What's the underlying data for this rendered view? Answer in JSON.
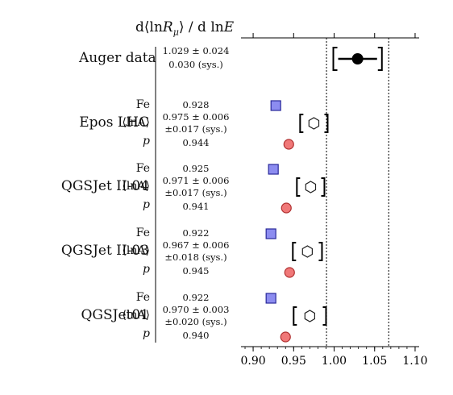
{
  "header": "d⟨lnR_μ⟩/d lnE",
  "chart_data": {
    "type": "scatter",
    "xlim": [
      0.885,
      1.105
    ],
    "xticks": [
      0.9,
      0.95,
      1.0,
      1.05,
      1.1
    ],
    "xtick_labels": [
      "0.90",
      "0.95",
      "1.00",
      "1.05",
      "1.10"
    ],
    "auger": {
      "label": "Auger data",
      "value": 1.029,
      "stat": 0.024,
      "sys": 0.03,
      "text_main": "1.029 ± 0.024",
      "text_sys": "0.030 (sys.)",
      "marker_color": "#000000"
    },
    "models": [
      {
        "name": "Epos LHC",
        "fe": {
          "label": "Fe",
          "value": 0.928,
          "text": "0.928"
        },
        "lnA": {
          "label": "⟨lnA⟩",
          "value": 0.975,
          "stat": 0.006,
          "sys": 0.017,
          "text_main": "0.975 ± 0.006",
          "text_sys": "±0.017 (sys.)"
        },
        "p": {
          "label": "p",
          "value": 0.944,
          "text": "0.944"
        }
      },
      {
        "name": "QGSJet II-04",
        "fe": {
          "label": "Fe",
          "value": 0.925,
          "text": "0.925"
        },
        "lnA": {
          "label": "⟨lnA⟩",
          "value": 0.971,
          "stat": 0.006,
          "sys": 0.017,
          "text_main": "0.971 ± 0.006",
          "text_sys": "±0.017 (sys.)"
        },
        "p": {
          "label": "p",
          "value": 0.941,
          "text": "0.941"
        }
      },
      {
        "name": "QGSJet II-03",
        "fe": {
          "label": "Fe",
          "value": 0.922,
          "text": "0.922"
        },
        "lnA": {
          "label": "⟨lnA⟩",
          "value": 0.967,
          "stat": 0.006,
          "sys": 0.018,
          "text_main": "0.967 ± 0.006",
          "text_sys": "±0.018 (sys.)"
        },
        "p": {
          "label": "p",
          "value": 0.945,
          "text": "0.945"
        }
      },
      {
        "name": "QGSJet01",
        "fe": {
          "label": "Fe",
          "value": 0.922,
          "text": "0.922"
        },
        "lnA": {
          "label": "⟨lnA⟩",
          "value": 0.97,
          "stat": 0.003,
          "sys": 0.02,
          "text_main": "0.970 ± 0.003",
          "text_sys": "±0.020 (sys.)"
        },
        "p": {
          "label": "p",
          "value": 0.94,
          "text": "0.940"
        }
      }
    ],
    "colors": {
      "fe_fill": "#8c8cf0",
      "fe_stroke": "#2a2a9a",
      "p_fill": "#f07878",
      "p_stroke": "#b03030",
      "hexagon_stroke": "#222222"
    },
    "grid": false,
    "reference_lines": "dashed vertical lines at Auger value ± total uncertainty"
  }
}
